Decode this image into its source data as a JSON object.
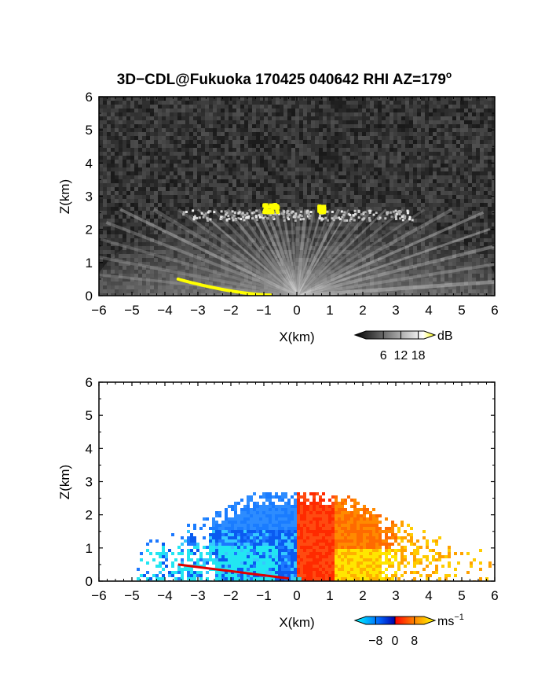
{
  "title": {
    "text": "3D−CDL@Fukuoka 170425 040642 RHI AZ=179",
    "degree_mark": "o"
  },
  "chart_data": [
    {
      "type": "heatmap",
      "panel": "reflectivity",
      "xlabel": "X(km)",
      "ylabel": "Z(km)",
      "xlim": [
        -6,
        6
      ],
      "ylim": [
        0,
        6
      ],
      "x_ticks": [
        -6,
        -5,
        -4,
        -3,
        -2,
        -1,
        0,
        1,
        2,
        3,
        4,
        5,
        6
      ],
      "y_ticks": [
        0,
        1,
        2,
        3,
        4,
        5,
        6
      ],
      "colorbar": {
        "unit": "dB",
        "ticks": [
          6,
          12,
          18
        ],
        "range": [
          0,
          20
        ],
        "colors": [
          "#000000",
          "#ffffff",
          "#ffff00"
        ]
      },
      "features": {
        "noise_background": "#2a2a2a",
        "echo_fan": {
          "origin_x": 0,
          "origin_z": 0,
          "max_range_km": 6,
          "top_km": 2.6
        },
        "cloud_base_yellow": [
          {
            "x": [
              -1.05,
              -0.6
            ],
            "z": [
              2.55,
              2.8
            ]
          },
          {
            "x": [
              0.62,
              0.8
            ],
            "z": [
              2.55,
              2.75
            ]
          }
        ],
        "ground_clutter_yellow": {
          "x": [
            -3.6,
            -0.8
          ],
          "z": [
            0.5,
            0.02
          ]
        }
      }
    },
    {
      "type": "heatmap",
      "panel": "doppler velocity",
      "xlabel": "X(km)",
      "ylabel": "Z(km)",
      "xlim": [
        -6,
        6
      ],
      "ylim": [
        0,
        6
      ],
      "x_ticks": [
        -6,
        -5,
        -4,
        -3,
        -2,
        -1,
        0,
        1,
        2,
        3,
        4,
        5,
        6
      ],
      "y_ticks": [
        0,
        1,
        2,
        3,
        4,
        5,
        6
      ],
      "colorbar": {
        "unit": "ms",
        "unit_exponent": "−1",
        "ticks": [
          -8,
          0,
          8
        ],
        "tick_labels": [
          "−8",
          "0",
          "8"
        ],
        "range": [
          -12,
          12
        ],
        "colors": [
          "#00ffff",
          "#0055ff",
          "#0000aa",
          "#ff0000",
          "#ff8800",
          "#ffff00"
        ]
      },
      "features": {
        "negative_side_x": [
          -5,
          0
        ],
        "positive_side_x": [
          0,
          6
        ],
        "echo_top_km": 2.8
      }
    }
  ]
}
